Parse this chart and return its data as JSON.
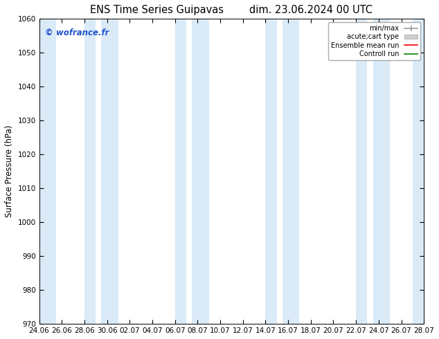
{
  "title_left": "ENS Time Series Guipavas",
  "title_right": "dim. 23.06.2024 00 UTC",
  "ylabel": "Surface Pressure (hPa)",
  "ylim": [
    970,
    1060
  ],
  "yticks": [
    970,
    980,
    990,
    1000,
    1010,
    1020,
    1030,
    1040,
    1050,
    1060
  ],
  "xtick_labels": [
    "24.06",
    "26.06",
    "28.06",
    "30.06",
    "02.07",
    "04.07",
    "06.07",
    "08.07",
    "10.07",
    "12.07",
    "14.07",
    "16.07",
    "18.07",
    "20.07",
    "22.07",
    "24.07",
    "26.07",
    "28.07"
  ],
  "shaded_band_color": "#daeaf7",
  "watermark_text": "© wofrance.fr",
  "watermark_color": "#2255cc",
  "legend_items": [
    {
      "label": "min/max",
      "color": "#aaaaaa",
      "type": "errorbar"
    },
    {
      "label": "acute;cart type",
      "color": "#cccccc",
      "type": "bar"
    },
    {
      "label": "Ensemble mean run",
      "color": "#ff0000",
      "type": "line"
    },
    {
      "label": "Controll run",
      "color": "#008800",
      "type": "line"
    }
  ],
  "bg_color": "#ffffff",
  "plot_bg_color": "#ffffff",
  "spine_color": "#000000",
  "tick_color": "#000000",
  "title_fontsize": 10.5,
  "axis_label_fontsize": 8.5,
  "tick_fontsize": 7.5
}
